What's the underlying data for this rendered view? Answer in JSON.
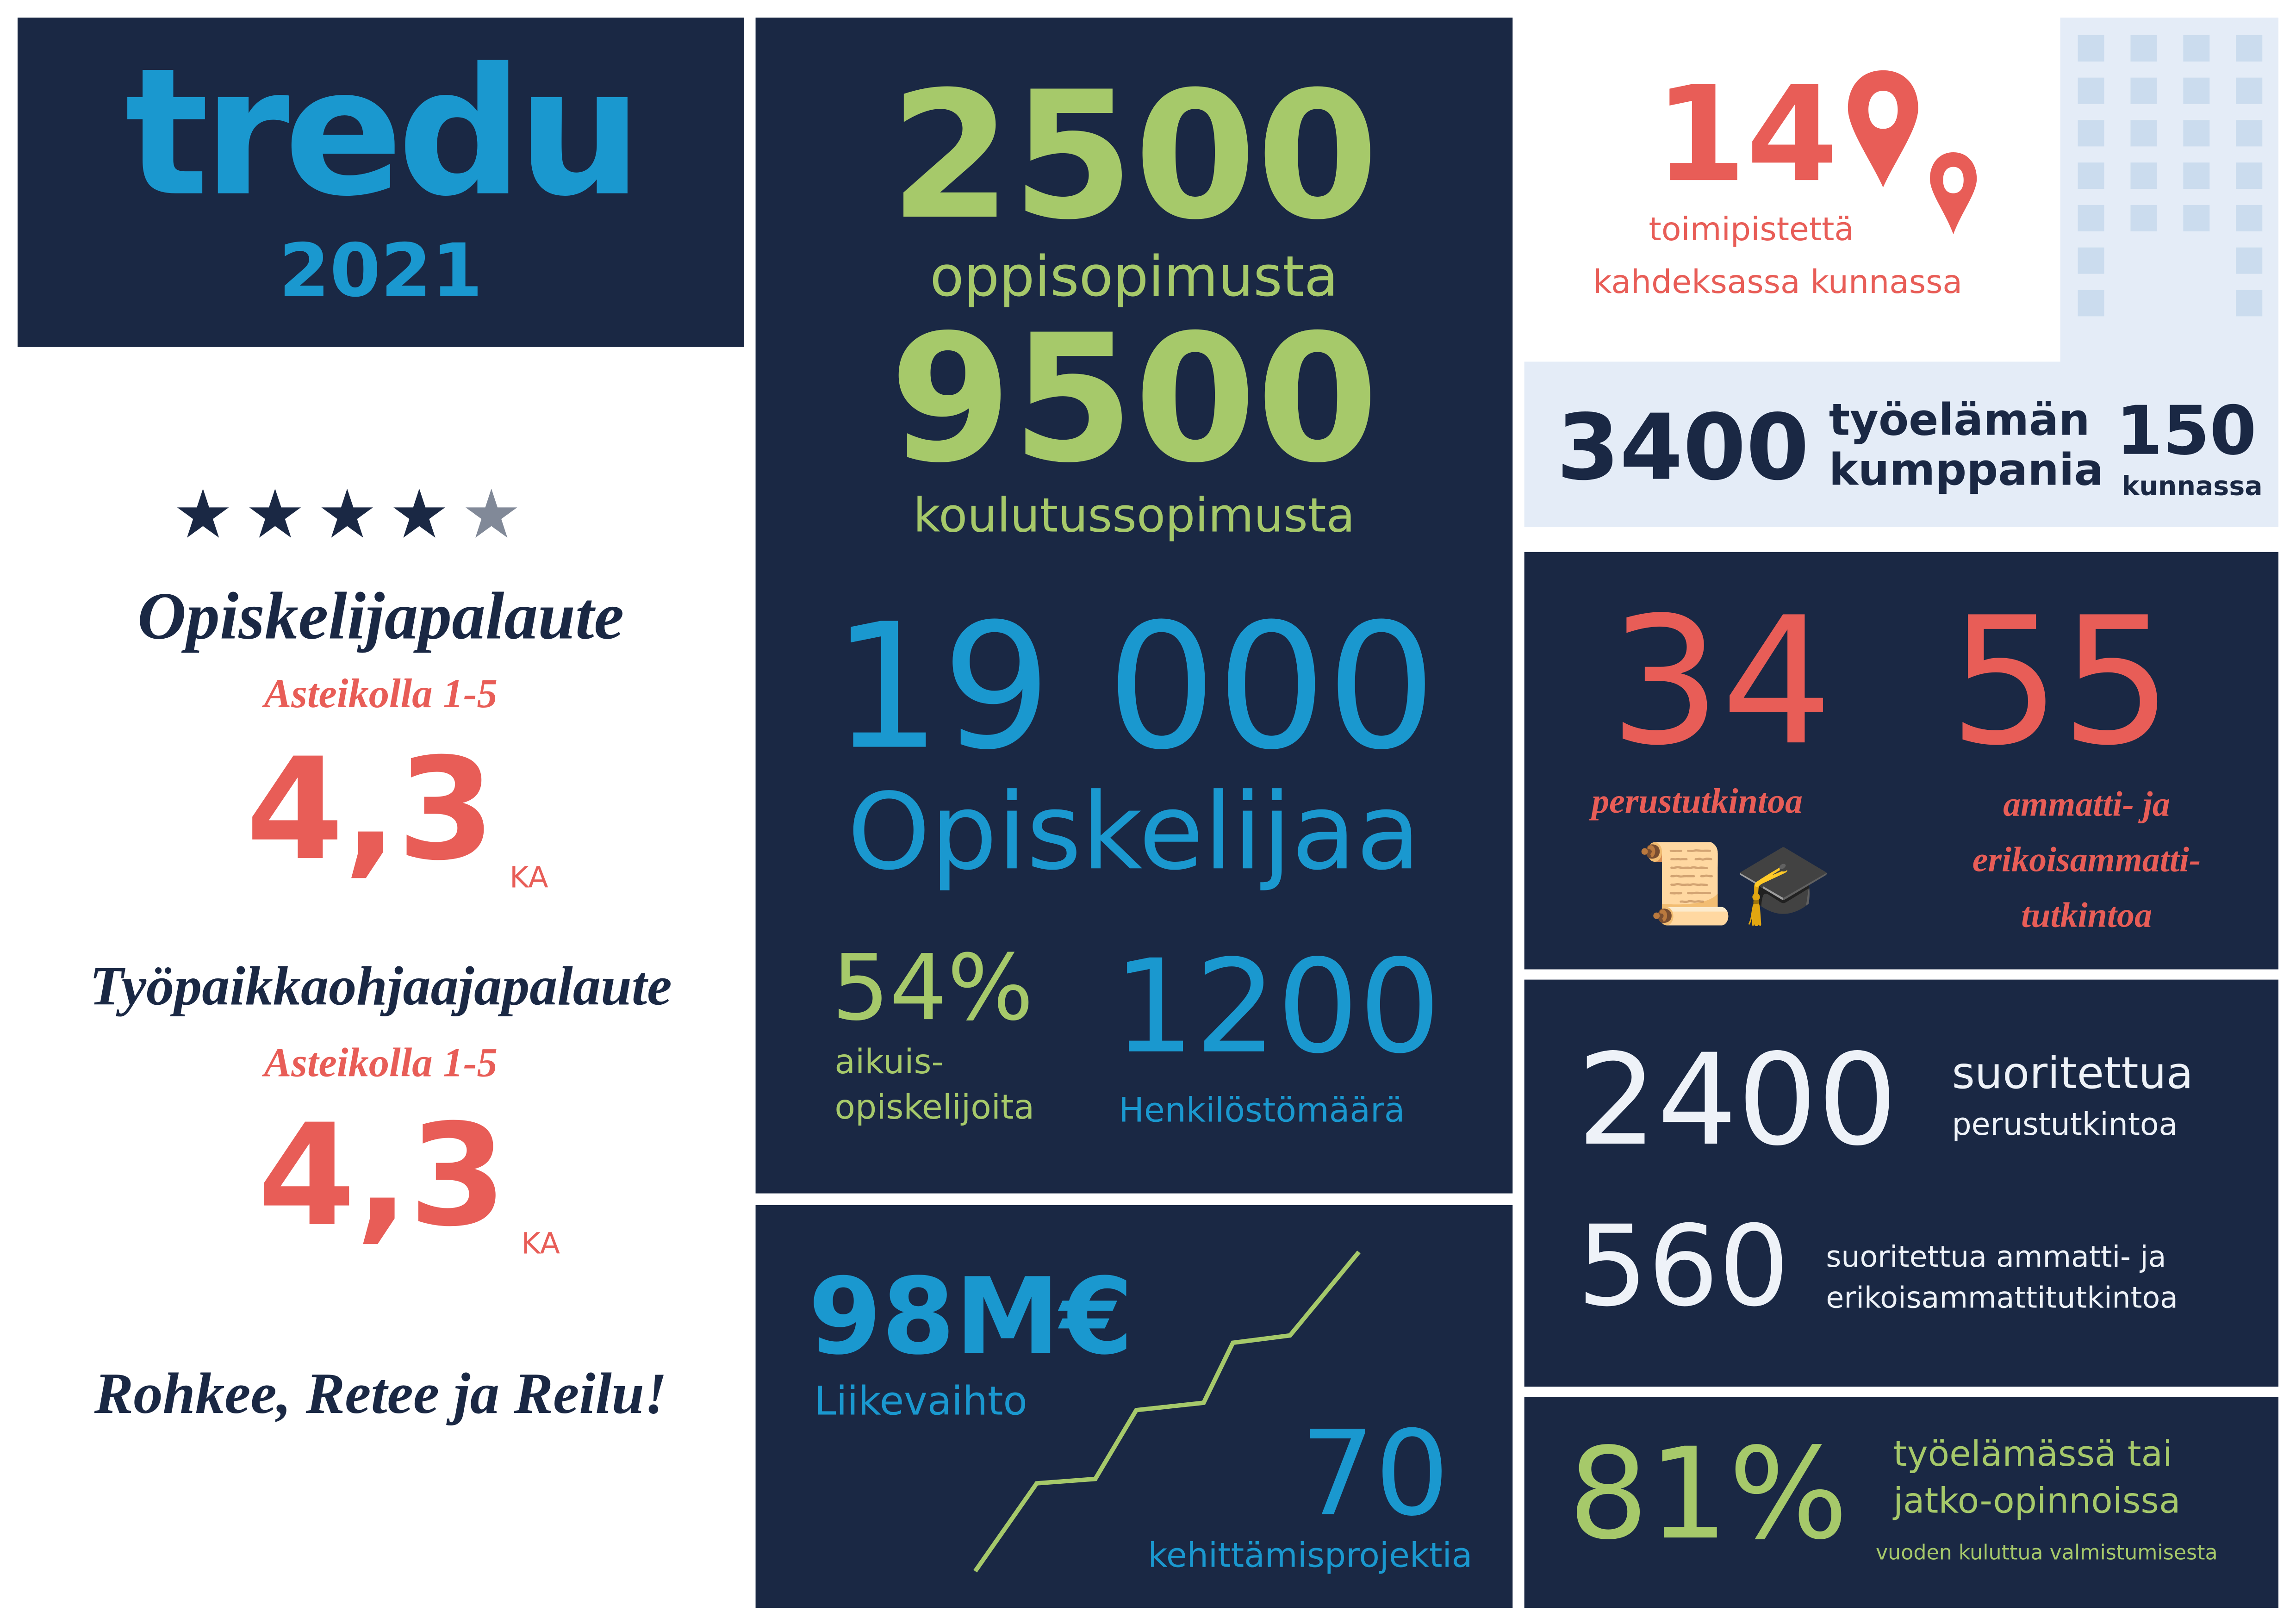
{
  "logo": {
    "brand": "tredu",
    "year": "2021"
  },
  "feedback": {
    "rating_stars": 4.3,
    "student": {
      "title": "Opiskelijapalaute",
      "scale": "Asteikolla 1-5",
      "value": "4,3",
      "unit": "KA"
    },
    "workplace": {
      "title": "Työpaikkaohjaajapalaute",
      "scale": "Asteikolla 1-5",
      "value": "4,3",
      "unit": "KA"
    },
    "slogan": "Rohkee, Retee ja Reilu!"
  },
  "middle": {
    "apprenticeships": {
      "value": "2500",
      "label": "oppisopimusta"
    },
    "training_agreements": {
      "value": "9500",
      "label": "koulutussopimusta"
    },
    "students": {
      "value": "19 000",
      "label": "Opiskelijaa"
    },
    "adult": {
      "value": "54%",
      "label1": "aikuis-",
      "label2": "opiskelijoita"
    },
    "staff": {
      "value": "1200",
      "label": "Henkilöstömäärä"
    },
    "revenue": {
      "value": "98M€",
      "label": "Liikevaihto"
    },
    "projects": {
      "value": "70",
      "label": "kehittämisprojektia"
    }
  },
  "locations": {
    "value": "14",
    "label1": "toimipistettä",
    "label2": "kahdeksassa kunnassa"
  },
  "partners": {
    "value": "3400",
    "label1": "työelämän",
    "label2": "kumppania",
    "municipalities_value": "150",
    "municipalities_label": "kunnassa"
  },
  "degrees": {
    "basic_value": "34",
    "basic_label": "perustutkintoa",
    "vocational_value": "55",
    "vocational_label1": "ammatti- ja",
    "vocational_label2": "erikoisammatti-",
    "vocational_label3": "tutkintoa"
  },
  "completed": {
    "basic_value": "2400",
    "basic_label1": "suoritettua",
    "basic_label2": "perustutkintoa",
    "voc_value": "560",
    "voc_label1": "suoritettua ammatti- ja",
    "voc_label2": "erikoisammattitutkintoa"
  },
  "employment": {
    "value": "81%",
    "label1": "työelämässä tai",
    "label2": "jatko-opinnoissa",
    "label3": "vuoden kuluttua valmistumisesta"
  },
  "colors": {
    "navy": "#1a2844",
    "blue": "#1a98cf",
    "green": "#a6c96a",
    "red": "#e85d57",
    "light": "#e4ecf7"
  }
}
